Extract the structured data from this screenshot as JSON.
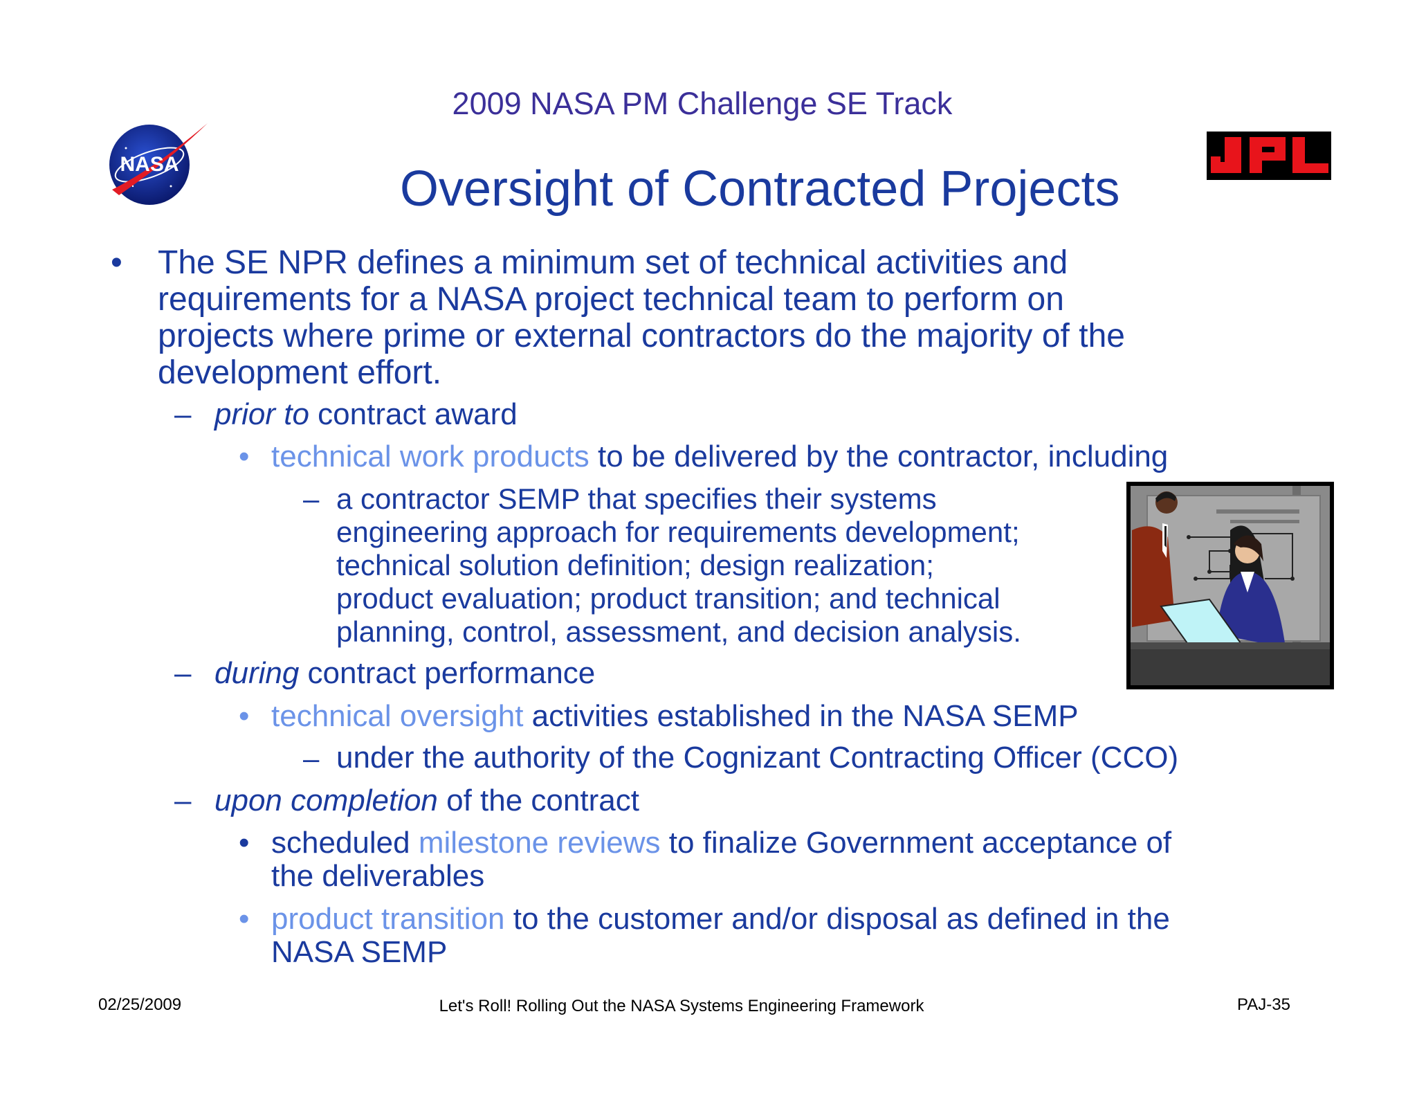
{
  "header": {
    "track_title": "2009 NASA PM Challenge SE Track",
    "slide_title": "Oversight of Contracted Projects",
    "logo_left_text": "NASA",
    "logo_right_text": "JPL"
  },
  "body": {
    "b1": {
      "bullet": "•",
      "lines": [
        "The SE NPR defines a minimum set of technical activities and",
        "requirements for a NASA project technical team to perform on",
        "projects where prime or external contractors do the majority of the",
        "development effort."
      ]
    },
    "prior": {
      "dash": "–",
      "em": "prior to",
      "rest": " contract award",
      "sub": {
        "bullet": "•",
        "hl": "technical work products",
        "rest": " to be delivered by the contractor, including"
      },
      "subsub": {
        "dash": "–",
        "lines": [
          "a contractor SEMP that specifies their systems",
          "engineering approach for requirements development;",
          "technical solution definition; design realization;",
          "product evaluation; product transition; and technical",
          "planning, control, assessment, and decision analysis."
        ]
      }
    },
    "during": {
      "dash": "–",
      "em": "during",
      "rest": " contract performance",
      "sub": {
        "bullet": "•",
        "hl": "technical oversight",
        "rest": " activities established in the NASA SEMP"
      },
      "subsub": {
        "dash": "–",
        "text": "under the authority of the Cognizant Contracting Officer (CCO)"
      }
    },
    "upon": {
      "dash": "–",
      "em": "upon completion",
      "rest": " of the contract",
      "sub1": {
        "bullet": "•",
        "pre": "scheduled ",
        "hl": "milestone reviews",
        "rest": " to finalize Government acceptance of",
        "line2": "the deliverables"
      },
      "sub2": {
        "bullet": "•",
        "hl": "product transition",
        "rest": " to the customer and/or disposal as defined in the",
        "line2": "NASA SEMP"
      }
    }
  },
  "footer": {
    "date": "02/25/2009",
    "center": "Let's Roll! Rolling Out the NASA Systems Engineering Framework",
    "page": "PAJ-35"
  },
  "colors": {
    "title_blue": "#1a3a9e",
    "track_purple": "#3b2f99",
    "highlight": "#6b93e8",
    "jpl_red": "#e8141b"
  }
}
